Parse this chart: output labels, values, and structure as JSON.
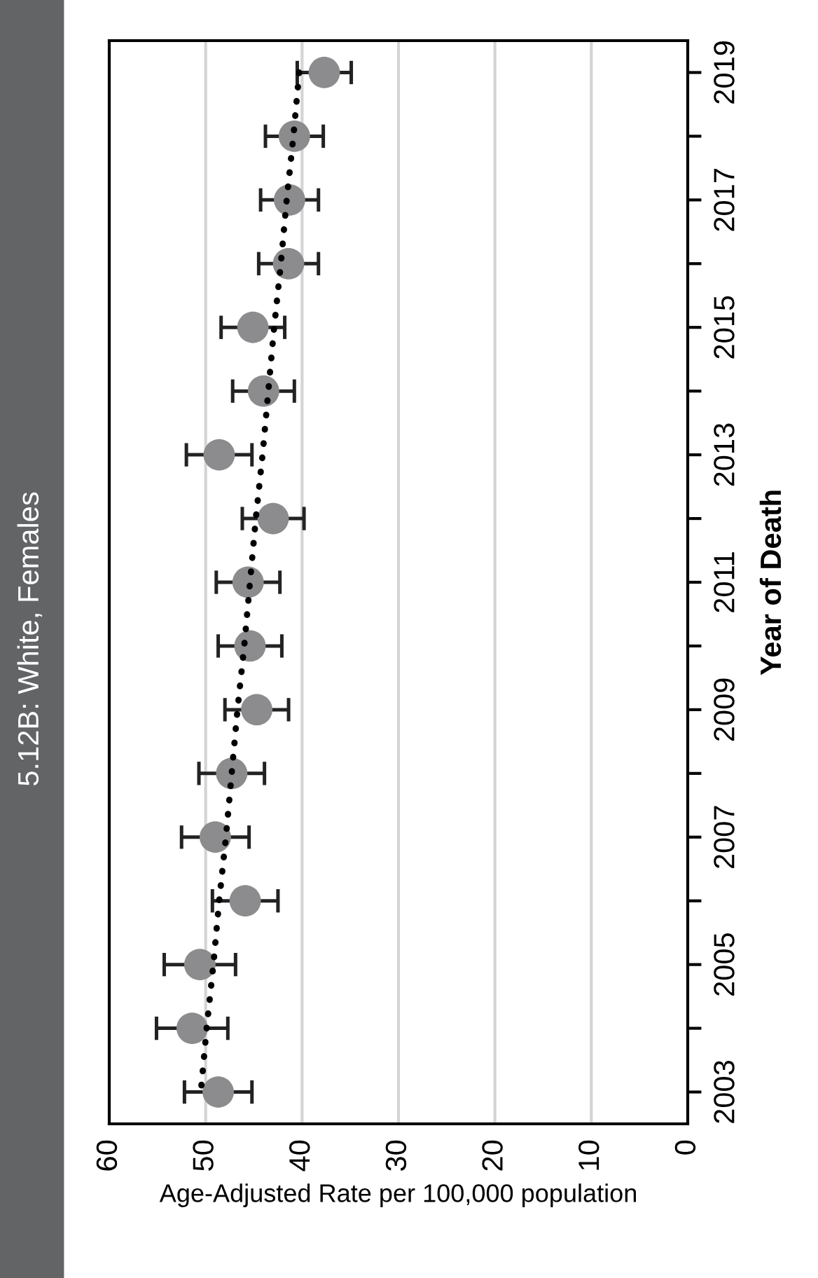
{
  "chart_data": {
    "type": "scatter",
    "orientation": "horizontal",
    "title": "5.12B: White, Females",
    "xlabel": "Age-Adjusted Rate per 100,000 population",
    "ylabel": "Year of Death",
    "categories": [
      "2019",
      null,
      "2017",
      null,
      "2015",
      null,
      "2013",
      null,
      "2011",
      null,
      "2009",
      null,
      "2007",
      null,
      "2005",
      null,
      "2003"
    ],
    "series": [
      {
        "color": "#8c8c8e",
        "marker": "circle",
        "values": [
          37.7,
          40.8,
          41.3,
          41.4,
          45.1,
          44.0,
          48.6,
          43.0,
          45.6,
          45.4,
          44.7,
          47.3,
          49.0,
          45.9,
          50.6,
          51.4,
          48.7
        ],
        "errors": [
          2.8,
          3.0,
          3.0,
          3.1,
          3.3,
          3.2,
          3.4,
          3.2,
          3.3,
          3.3,
          3.3,
          3.4,
          3.5,
          3.4,
          3.7,
          3.7,
          3.5
        ]
      },
      {
        "type": "line",
        "color": "#000000",
        "line_style": "dotted",
        "values": [
          40.3,
          40.9,
          41.6,
          42.2,
          42.9,
          43.5,
          44.1,
          44.8,
          45.4,
          46.0,
          46.7,
          47.3,
          47.9,
          48.6,
          49.2,
          49.9,
          50.5
        ]
      }
    ],
    "xlim": [
      60,
      0
    ],
    "xticks": [
      0,
      10,
      20,
      30,
      40,
      50,
      60
    ],
    "grid": "x"
  }
}
